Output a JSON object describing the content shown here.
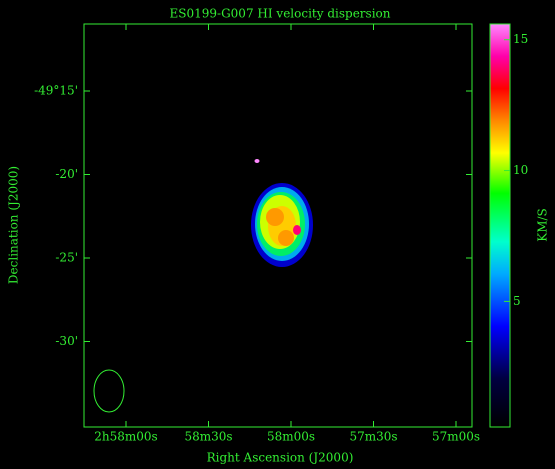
{
  "chart_data": {
    "type": "image",
    "title": "ES0199-G007  HI velocity dispersion",
    "xlabel": "Right Ascension (J2000)",
    "ylabel": "Declination (J2000)",
    "xtick_labels": [
      "2h58m00s",
      "58m30s",
      "58m00s",
      "57m30s",
      "57m00s"
    ],
    "ytick_labels": [
      "-49°15'",
      "-20'",
      "-25'",
      "-30'"
    ],
    "colorbar": {
      "label": "KM/S",
      "lim": [
        0.2,
        15.6
      ],
      "ticks": [
        5,
        10,
        15
      ]
    }
  }
}
